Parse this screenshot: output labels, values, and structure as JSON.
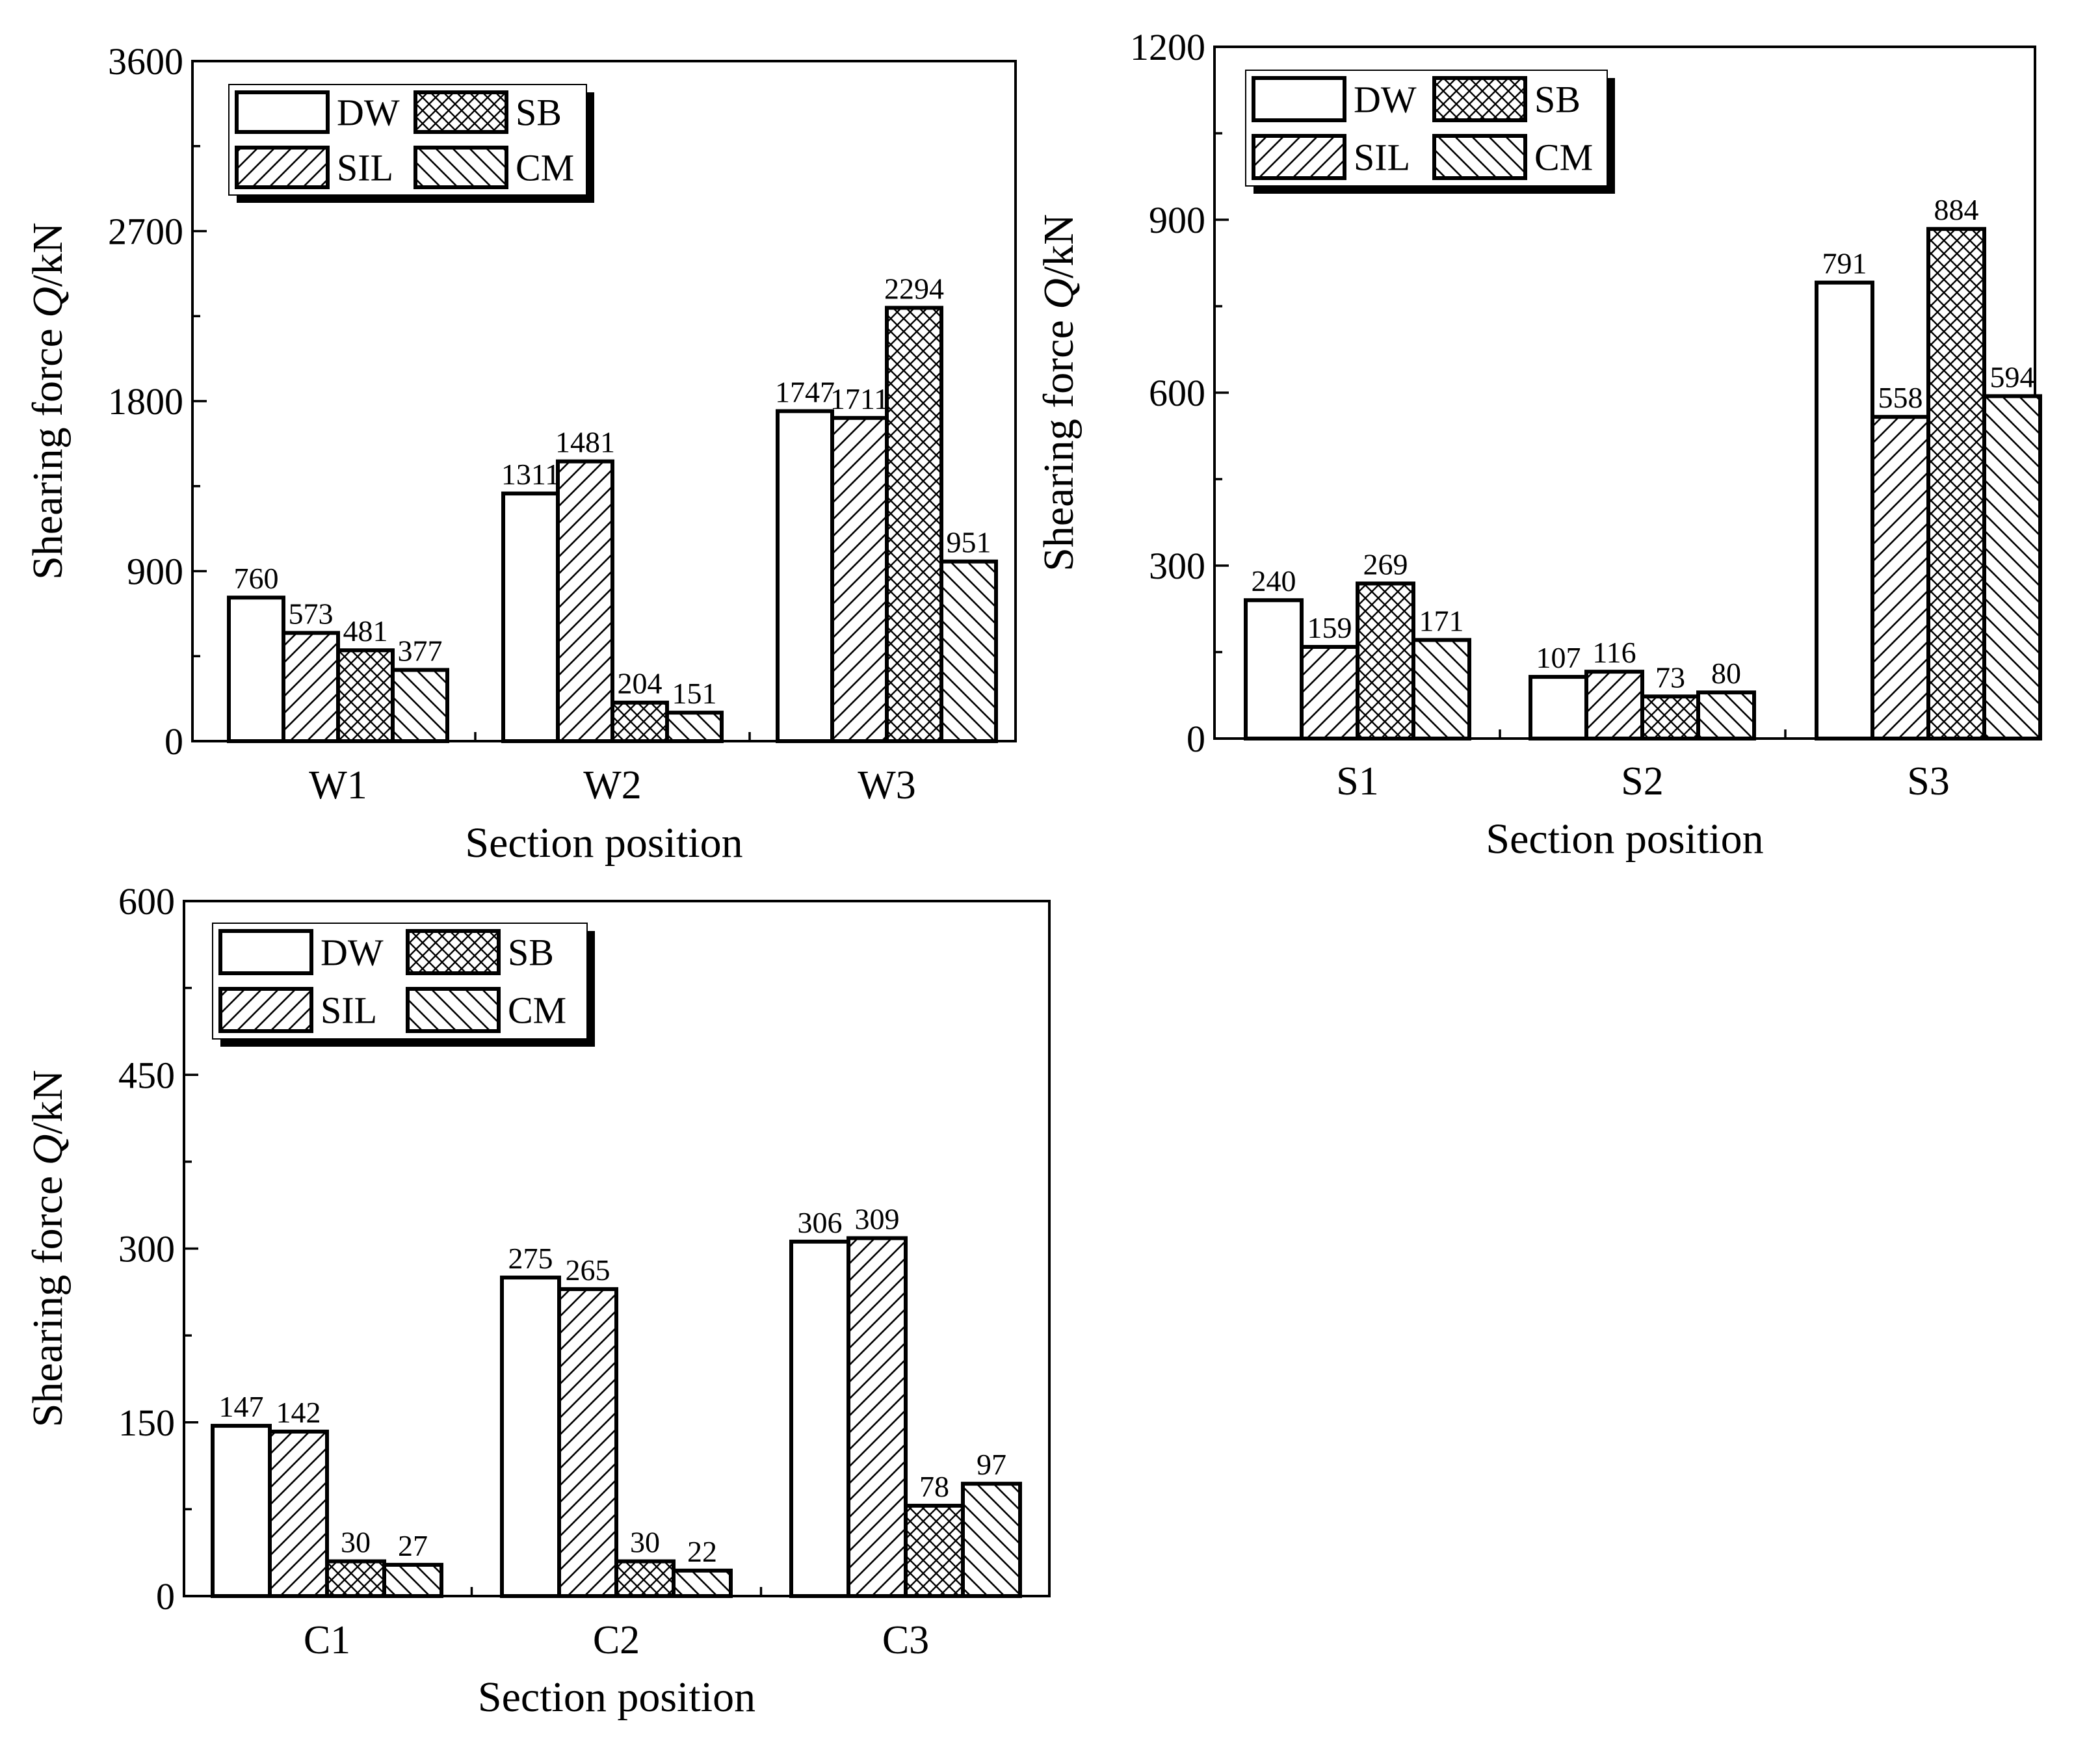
{
  "legend_labels": {
    "DW": "DW",
    "SB": "SB",
    "SIL": "SIL",
    "CM": "CM"
  },
  "chart_data": [
    {
      "type": "bar",
      "panel": "top-left",
      "title": "",
      "xlabel": "Section position",
      "ylabel_prefix": "Shearing force ",
      "ylabel_symbol": "Q",
      "ylabel_suffix": "/kN",
      "ylim": [
        0,
        3600
      ],
      "yticks": [
        0,
        900,
        1800,
        2700,
        3600
      ],
      "categories": [
        "W1",
        "W2",
        "W3"
      ],
      "series": [
        {
          "name": "DW",
          "pattern": "blank",
          "values": [
            760,
            1311,
            1747
          ]
        },
        {
          "name": "SIL",
          "pattern": "slash",
          "values": [
            573,
            1481,
            1711
          ]
        },
        {
          "name": "SB",
          "pattern": "cross",
          "values": [
            481,
            204,
            2294
          ]
        },
        {
          "name": "CM",
          "pattern": "back",
          "values": [
            377,
            151,
            951
          ]
        }
      ],
      "legend_position": "top-left"
    },
    {
      "type": "bar",
      "panel": "top-right",
      "title": "",
      "xlabel": "Section position",
      "ylabel_prefix": "Shearing force ",
      "ylabel_symbol": "Q",
      "ylabel_suffix": "/kN",
      "ylim": [
        0,
        1200
      ],
      "yticks": [
        0,
        300,
        600,
        900,
        1200
      ],
      "categories": [
        "S1",
        "S2",
        "S3"
      ],
      "series": [
        {
          "name": "DW",
          "pattern": "blank",
          "values": [
            240,
            107,
            791
          ]
        },
        {
          "name": "SIL",
          "pattern": "slash",
          "values": [
            159,
            116,
            558
          ]
        },
        {
          "name": "SB",
          "pattern": "cross",
          "values": [
            269,
            73,
            884
          ]
        },
        {
          "name": "CM",
          "pattern": "back",
          "values": [
            171,
            80,
            594
          ]
        }
      ],
      "legend_position": "top-left"
    },
    {
      "type": "bar",
      "panel": "bottom-left",
      "title": "",
      "xlabel": "Section position",
      "ylabel_prefix": "Shearing force ",
      "ylabel_symbol": "Q",
      "ylabel_suffix": "/kN",
      "ylim": [
        0,
        600
      ],
      "yticks": [
        0,
        150,
        300,
        450,
        600
      ],
      "categories": [
        "C1",
        "C2",
        "C3"
      ],
      "series": [
        {
          "name": "DW",
          "pattern": "blank",
          "values": [
            147,
            275,
            306
          ]
        },
        {
          "name": "SIL",
          "pattern": "slash",
          "values": [
            142,
            265,
            309
          ]
        },
        {
          "name": "SB",
          "pattern": "cross",
          "values": [
            30,
            30,
            78
          ]
        },
        {
          "name": "CM",
          "pattern": "back",
          "values": [
            27,
            22,
            97
          ]
        }
      ],
      "legend_position": "top-left"
    }
  ]
}
